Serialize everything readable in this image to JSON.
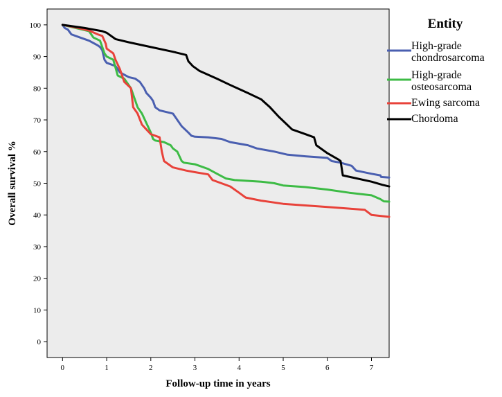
{
  "chart_data": {
    "type": "line",
    "xlabel": "Follow-up time in years",
    "ylabel": "Overall survival %",
    "xlim": [
      -0.35,
      7.4
    ],
    "ylim": [
      -5,
      105
    ],
    "x_ticks": [
      0,
      1,
      2,
      3,
      4,
      5,
      6,
      7
    ],
    "y_ticks": [
      0,
      10,
      20,
      30,
      40,
      50,
      60,
      70,
      80,
      90,
      100
    ],
    "grid": false,
    "background": "#ececec",
    "legend": {
      "title": "Entity",
      "position": "right",
      "entries": [
        {
          "lines": [
            "High-grade",
            "chondrosarcoma"
          ],
          "color": "#4a5fb0"
        },
        {
          "lines": [
            "High-grade",
            "osteosarcoma"
          ],
          "color": "#3dbb45"
        },
        {
          "lines": [
            "Ewing sarcoma"
          ],
          "color": "#e8423a"
        },
        {
          "lines": [
            "Chordoma"
          ],
          "color": "#000000"
        }
      ]
    },
    "series": [
      {
        "name": "High-grade chondrosarcoma",
        "color": "#4a5fb0",
        "points": [
          [
            0,
            100
          ],
          [
            0.05,
            99
          ],
          [
            0.12,
            98.5
          ],
          [
            0.2,
            97
          ],
          [
            0.4,
            96
          ],
          [
            0.6,
            95
          ],
          [
            0.8,
            93.5
          ],
          [
            0.85,
            93
          ],
          [
            0.9,
            92
          ],
          [
            0.95,
            89
          ],
          [
            1.0,
            88
          ],
          [
            1.2,
            87
          ],
          [
            1.3,
            85
          ],
          [
            1.5,
            83.5
          ],
          [
            1.65,
            83
          ],
          [
            1.75,
            82
          ],
          [
            1.85,
            80
          ],
          [
            1.9,
            78.5
          ],
          [
            2.0,
            77
          ],
          [
            2.05,
            76
          ],
          [
            2.1,
            74
          ],
          [
            2.2,
            73
          ],
          [
            2.5,
            72
          ],
          [
            2.7,
            68
          ],
          [
            2.85,
            66
          ],
          [
            2.92,
            65
          ],
          [
            3.0,
            64.7
          ],
          [
            3.3,
            64.5
          ],
          [
            3.6,
            64
          ],
          [
            3.8,
            63
          ],
          [
            4.2,
            62
          ],
          [
            4.4,
            61
          ],
          [
            4.8,
            60
          ],
          [
            5.1,
            59
          ],
          [
            5.5,
            58.5
          ],
          [
            6.0,
            58
          ],
          [
            6.1,
            57
          ],
          [
            6.3,
            56.5
          ],
          [
            6.55,
            55.5
          ],
          [
            6.65,
            54
          ],
          [
            7.0,
            53
          ],
          [
            7.2,
            52.5
          ],
          [
            7.22,
            52
          ],
          [
            7.4,
            51.8
          ]
        ]
      },
      {
        "name": "High-grade osteosarcoma",
        "color": "#3dbb45",
        "points": [
          [
            0,
            100
          ],
          [
            0.3,
            99
          ],
          [
            0.6,
            98
          ],
          [
            0.7,
            96
          ],
          [
            0.85,
            95
          ],
          [
            0.95,
            91
          ],
          [
            1.0,
            90
          ],
          [
            1.15,
            89
          ],
          [
            1.25,
            84
          ],
          [
            1.4,
            83
          ],
          [
            1.55,
            80
          ],
          [
            1.7,
            74
          ],
          [
            1.8,
            72
          ],
          [
            1.9,
            69
          ],
          [
            2.0,
            66
          ],
          [
            2.05,
            64
          ],
          [
            2.1,
            63.5
          ],
          [
            2.3,
            63
          ],
          [
            2.45,
            62
          ],
          [
            2.5,
            61
          ],
          [
            2.6,
            60
          ],
          [
            2.7,
            57
          ],
          [
            2.75,
            56.5
          ],
          [
            3.0,
            56
          ],
          [
            3.1,
            55.5
          ],
          [
            3.3,
            54.5
          ],
          [
            3.5,
            53
          ],
          [
            3.7,
            51.5
          ],
          [
            3.9,
            51
          ],
          [
            4.5,
            50.5
          ],
          [
            4.8,
            50
          ],
          [
            5.0,
            49.3
          ],
          [
            5.5,
            48.8
          ],
          [
            6.0,
            48
          ],
          [
            6.5,
            47
          ],
          [
            7.0,
            46.2
          ],
          [
            7.2,
            45
          ],
          [
            7.28,
            44.3
          ],
          [
            7.4,
            44.2
          ]
        ]
      },
      {
        "name": "Ewing sarcoma",
        "color": "#e8423a",
        "points": [
          [
            0,
            100
          ],
          [
            0.3,
            99.2
          ],
          [
            0.6,
            98.2
          ],
          [
            0.8,
            97
          ],
          [
            0.9,
            96.5
          ],
          [
            0.98,
            94
          ],
          [
            1.0,
            92.5
          ],
          [
            1.15,
            91
          ],
          [
            1.2,
            89
          ],
          [
            1.3,
            86
          ],
          [
            1.4,
            82
          ],
          [
            1.55,
            80
          ],
          [
            1.6,
            74
          ],
          [
            1.7,
            72
          ],
          [
            1.8,
            68.5
          ],
          [
            1.9,
            67
          ],
          [
            2.0,
            65.5
          ],
          [
            2.2,
            64.5
          ],
          [
            2.25,
            60
          ],
          [
            2.3,
            57
          ],
          [
            2.5,
            55
          ],
          [
            2.8,
            54
          ],
          [
            3.0,
            53.5
          ],
          [
            3.3,
            52.8
          ],
          [
            3.4,
            51
          ],
          [
            3.8,
            49
          ],
          [
            4.0,
            47
          ],
          [
            4.15,
            45.5
          ],
          [
            4.5,
            44.5
          ],
          [
            5.0,
            43.5
          ],
          [
            5.5,
            43
          ],
          [
            6.0,
            42.5
          ],
          [
            6.5,
            42
          ],
          [
            6.85,
            41.6
          ],
          [
            7.0,
            40
          ],
          [
            7.4,
            39.4
          ]
        ]
      },
      {
        "name": "Chordoma",
        "color": "#000000",
        "points": [
          [
            0,
            100
          ],
          [
            0.5,
            99
          ],
          [
            0.9,
            98
          ],
          [
            1.0,
            97.5
          ],
          [
            1.2,
            95.5
          ],
          [
            1.5,
            94.5
          ],
          [
            2.0,
            93
          ],
          [
            2.5,
            91.5
          ],
          [
            2.8,
            90.5
          ],
          [
            2.85,
            88.5
          ],
          [
            2.95,
            87
          ],
          [
            3.1,
            85.5
          ],
          [
            3.5,
            83
          ],
          [
            3.8,
            81
          ],
          [
            4.2,
            78.5
          ],
          [
            4.5,
            76.5
          ],
          [
            4.7,
            74
          ],
          [
            4.9,
            71
          ],
          [
            5.05,
            69
          ],
          [
            5.2,
            67
          ],
          [
            5.5,
            65.5
          ],
          [
            5.7,
            64.5
          ],
          [
            5.75,
            62
          ],
          [
            6.0,
            59.5
          ],
          [
            6.25,
            57.5
          ],
          [
            6.3,
            57
          ],
          [
            6.35,
            52.5
          ],
          [
            7.0,
            50.5
          ],
          [
            7.25,
            49.5
          ],
          [
            7.4,
            49
          ]
        ]
      }
    ]
  }
}
